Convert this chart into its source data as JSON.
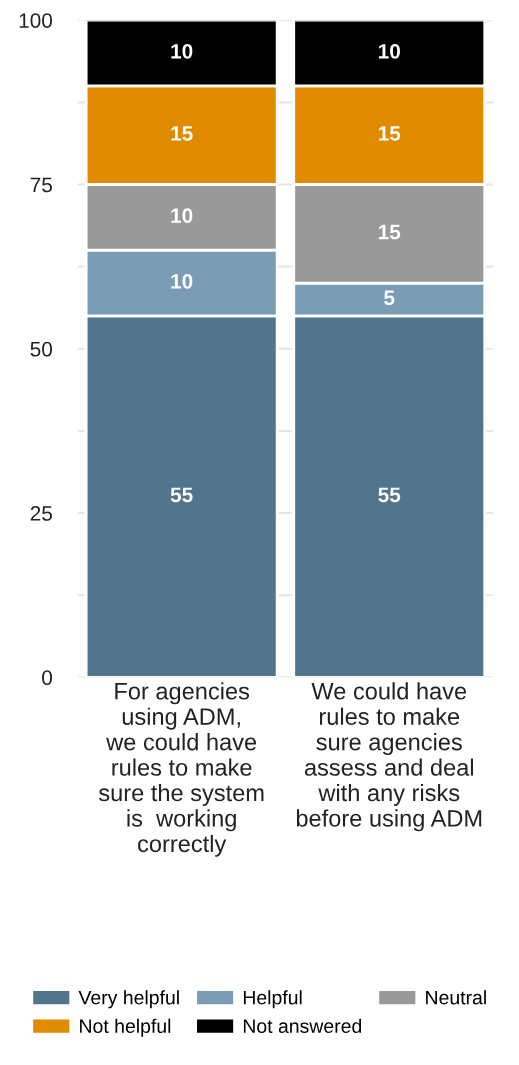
{
  "chart_data": {
    "type": "bar",
    "stacked": true,
    "categories": [
      "For agencies\nusing ADM,\nwe could have\nrules to make\nsure the system\nis  working\ncorrectly",
      "We could have\nrules to make\nsure agencies\nassess and deal\nwith any risks\nbefore using ADM"
    ],
    "series": [
      {
        "name": "Very helpful",
        "color": "#50758c",
        "values": [
          55,
          55
        ]
      },
      {
        "name": "Helpful",
        "color": "#7a9db5",
        "values": [
          10,
          5
        ]
      },
      {
        "name": "Neutral",
        "color": "#999999",
        "values": [
          10,
          15
        ]
      },
      {
        "name": "Not helpful",
        "color": "#e08a00",
        "values": [
          15,
          15
        ]
      },
      {
        "name": "Not answered",
        "color": "#000000",
        "values": [
          10,
          10
        ]
      }
    ],
    "ylim": [
      0,
      100
    ],
    "yticks": [
      0,
      {
        "value": 12.5,
        "label": null
      },
      25,
      {
        "value": 37.5,
        "label": null
      },
      50,
      {
        "value": 62.5,
        "label": null
      },
      75,
      {
        "value": 87.5,
        "label": null
      },
      100
    ],
    "grid": "y",
    "data_labels": true,
    "legend": "bottom"
  }
}
